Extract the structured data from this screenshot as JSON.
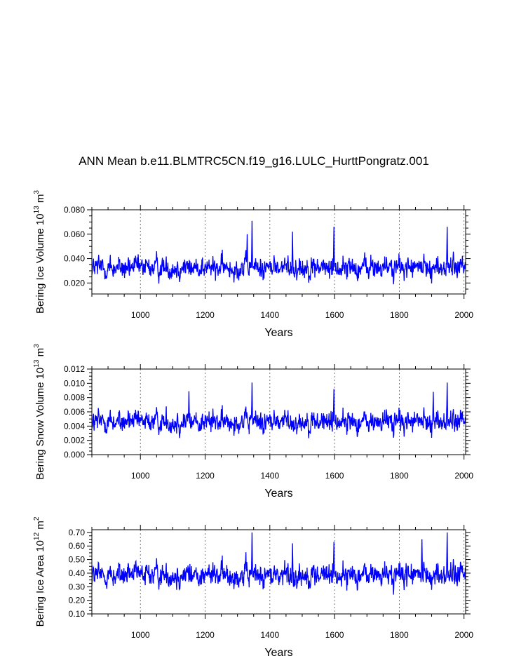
{
  "title": "ANN Mean b.e11.BLMTRC5CN.f19_g16.LULC_HurttPongratz.001",
  "line_color": "#0000ff",
  "chart_data": [
    {
      "type": "line",
      "name": "ice-volume",
      "xlabel": "Years",
      "ylabel_text": "Bering Ice Volume 10",
      "ylabel_exp": "13",
      "ylabel_unit": " m",
      "ylabel_unit_exp": "3",
      "xlim": [
        850,
        2005
      ],
      "ylim": [
        0.011,
        0.08
      ],
      "xticks": [
        1000,
        1200,
        1400,
        1600,
        1800,
        2000
      ],
      "yticks": [
        0.02,
        0.04,
        0.06,
        0.08
      ],
      "ytick_labels": [
        "0.020",
        "0.040",
        "0.060",
        "0.080"
      ],
      "series_stats": {
        "mean": 0.0325,
        "amplitude": 0.0075,
        "min": 0.015,
        "max": 0.071,
        "peaks": [
          [
            1345,
            0.071
          ],
          [
            1598,
            0.066
          ],
          [
            1948,
            0.066
          ],
          [
            1470,
            0.062
          ],
          [
            1330,
            0.06
          ]
        ]
      }
    },
    {
      "type": "line",
      "name": "snow-volume",
      "xlabel": "Years",
      "ylabel_text": "Bering Snow Volume 10",
      "ylabel_exp": "13",
      "ylabel_unit": " m",
      "ylabel_unit_exp": "3",
      "xlim": [
        850,
        2005
      ],
      "ylim": [
        0.0,
        0.012
      ],
      "xticks": [
        1000,
        1200,
        1400,
        1600,
        1800,
        2000
      ],
      "yticks": [
        0.0,
        0.002,
        0.004,
        0.006,
        0.008,
        0.01,
        0.012
      ],
      "ytick_labels": [
        "0.000",
        "0.002",
        "0.004",
        "0.006",
        "0.008",
        "0.010",
        "0.012"
      ],
      "series_stats": {
        "mean": 0.0046,
        "amplitude": 0.0013,
        "min": 0.0018,
        "max": 0.0101,
        "peaks": [
          [
            1345,
            0.0101
          ],
          [
            1948,
            0.0101
          ],
          [
            1598,
            0.0092
          ],
          [
            1150,
            0.0089
          ],
          [
            1905,
            0.0088
          ]
        ]
      }
    },
    {
      "type": "line",
      "name": "ice-area",
      "xlabel": "Years",
      "ylabel_text": "Bering Ice Area 10",
      "ylabel_exp": "12",
      "ylabel_unit": " m",
      "ylabel_unit_exp": "2",
      "xlim": [
        850,
        2005
      ],
      "ylim": [
        0.1,
        0.72
      ],
      "xticks": [
        1000,
        1200,
        1400,
        1600,
        1800,
        2000
      ],
      "yticks": [
        0.1,
        0.2,
        0.3,
        0.4,
        0.5,
        0.6,
        0.7
      ],
      "ytick_labels": [
        "0.10",
        "0.20",
        "0.30",
        "0.40",
        "0.50",
        "0.60",
        "0.70"
      ],
      "series_stats": {
        "mean": 0.385,
        "amplitude": 0.075,
        "min": 0.18,
        "max": 0.7,
        "peaks": [
          [
            1345,
            0.7
          ],
          [
            1948,
            0.7
          ],
          [
            1598,
            0.63
          ],
          [
            1870,
            0.65
          ],
          [
            1470,
            0.62
          ]
        ]
      }
    }
  ]
}
